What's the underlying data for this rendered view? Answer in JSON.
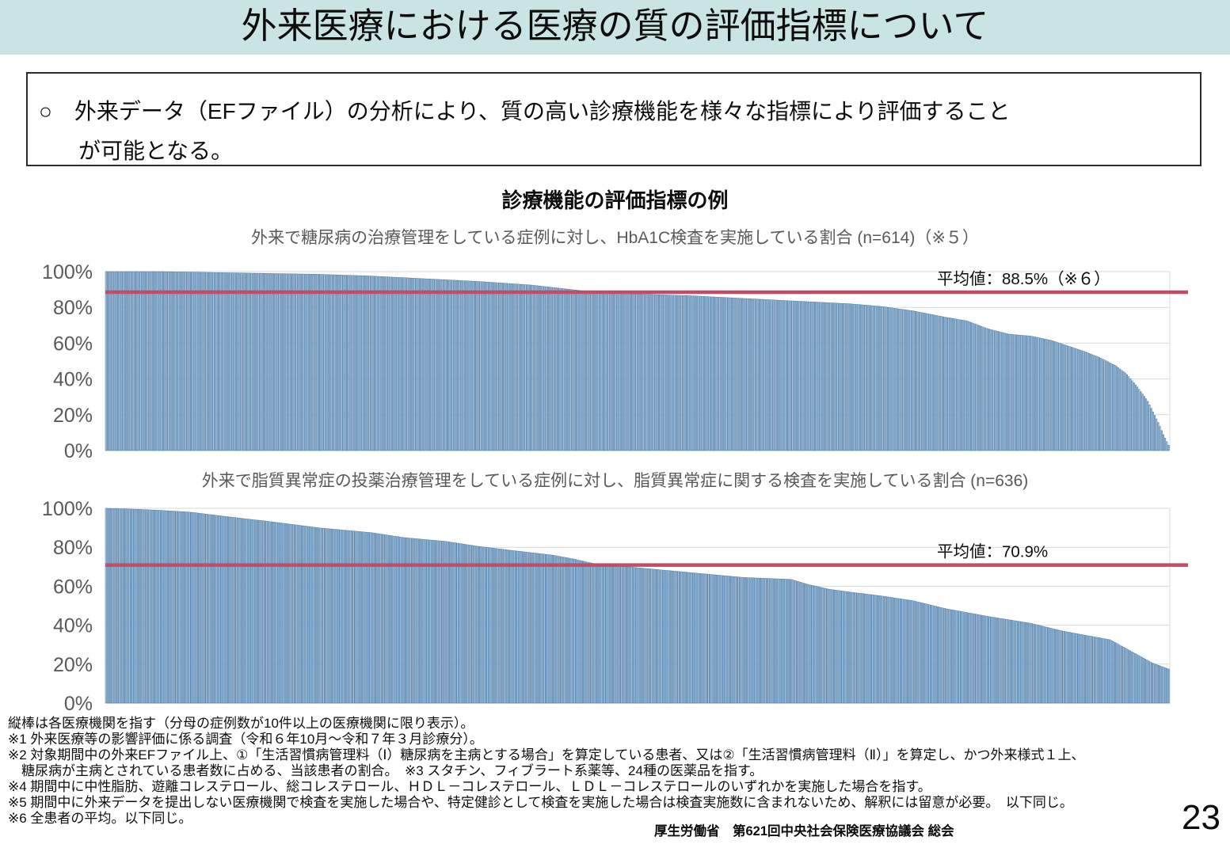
{
  "page": {
    "title": "外来医療における医療の質の評価指標について",
    "page_number": "23",
    "attribution": "厚生労働省　第621回中央社会保険医療協議会 総会"
  },
  "statement": {
    "lines": [
      "○　外来データ（EFファイル）の分析により、質の高い診療機能を様々な指標により評価すること",
      "が可能となる。"
    ]
  },
  "section": {
    "title": "診療機能の評価指標の例"
  },
  "chart_data": [
    {
      "type": "bar",
      "subtitle": "外来で糖尿病の治療管理をしている症例に対し、HbA1C検査を実施している割合 (n=614)（※５）",
      "n": 614,
      "unit": "%",
      "ylim": [
        0,
        100
      ],
      "grid": true,
      "y_ticks": [
        "100%",
        "80%",
        "60%",
        "40%",
        "20%",
        "0%"
      ],
      "mean_value": 88.5,
      "mean_label": "平均値：88.5%（※６）",
      "mean_line_color": "#c34b63",
      "bar_fill_light": "#b5d0ea",
      "bar_fill_dark": "#9fbede",
      "bar_stroke": "#41719c",
      "sort": "descending",
      "profile_points": [
        [
          0,
          100
        ],
        [
          0.05,
          100
        ],
        [
          0.1,
          99.5
        ],
        [
          0.15,
          99
        ],
        [
          0.2,
          98.5
        ],
        [
          0.25,
          97.5
        ],
        [
          0.3,
          96
        ],
        [
          0.35,
          94.5
        ],
        [
          0.4,
          92.5
        ],
        [
          0.43,
          90.5
        ],
        [
          0.46,
          88.5
        ],
        [
          0.5,
          87.5
        ],
        [
          0.55,
          86.5
        ],
        [
          0.6,
          85
        ],
        [
          0.65,
          83.5
        ],
        [
          0.7,
          82
        ],
        [
          0.73,
          80.5
        ],
        [
          0.76,
          78
        ],
        [
          0.79,
          74.5
        ],
        [
          0.81,
          72.5
        ],
        [
          0.83,
          68
        ],
        [
          0.85,
          65
        ],
        [
          0.87,
          64
        ],
        [
          0.89,
          61.5
        ],
        [
          0.905,
          58.5
        ],
        [
          0.92,
          55.5
        ],
        [
          0.935,
          52
        ],
        [
          0.95,
          47.5
        ],
        [
          0.96,
          43
        ],
        [
          0.97,
          36
        ],
        [
          0.98,
          28
        ],
        [
          0.99,
          16
        ],
        [
          0.995,
          9
        ],
        [
          1,
          3
        ]
      ]
    },
    {
      "type": "bar",
      "subtitle": "外来で脂質異常症の投薬治療管理をしている症例に対し、脂質異常症に関する検査を実施している割合 (n=636)",
      "n": 636,
      "unit": "%",
      "ylim": [
        0,
        100
      ],
      "grid": true,
      "y_ticks": [
        "100%",
        "80%",
        "60%",
        "40%",
        "20%",
        "0%"
      ],
      "mean_value": 70.9,
      "mean_label": "平均値：70.9%",
      "mean_line_color": "#c34b63",
      "bar_fill_light": "#b5d0ea",
      "bar_fill_dark": "#9fbede",
      "bar_stroke": "#41719c",
      "sort": "descending",
      "profile_points": [
        [
          0,
          100
        ],
        [
          0.03,
          99.5
        ],
        [
          0.05,
          99
        ],
        [
          0.08,
          98
        ],
        [
          0.125,
          95
        ],
        [
          0.15,
          93.5
        ],
        [
          0.2,
          90
        ],
        [
          0.25,
          87.5
        ],
        [
          0.28,
          85
        ],
        [
          0.32,
          83
        ],
        [
          0.35,
          80.5
        ],
        [
          0.38,
          78.5
        ],
        [
          0.42,
          76
        ],
        [
          0.44,
          74
        ],
        [
          0.46,
          71.5
        ],
        [
          0.5,
          69.5
        ],
        [
          0.55,
          67
        ],
        [
          0.6,
          64.5
        ],
        [
          0.645,
          63.5
        ],
        [
          0.66,
          61
        ],
        [
          0.68,
          58.5
        ],
        [
          0.7,
          57
        ],
        [
          0.73,
          55
        ],
        [
          0.76,
          52.5
        ],
        [
          0.79,
          48.5
        ],
        [
          0.83,
          44.5
        ],
        [
          0.87,
          41
        ],
        [
          0.9,
          37
        ],
        [
          0.93,
          34
        ],
        [
          0.945,
          32.5
        ],
        [
          0.96,
          28
        ],
        [
          0.975,
          23.5
        ],
        [
          0.985,
          20.5
        ],
        [
          1,
          17.5
        ]
      ]
    }
  ],
  "footnotes": {
    "lines": [
      "縦棒は各医療機関を指す（分母の症例数が10件以上の医療機関に限り表示）。",
      "※1 外来医療等の影響評価に係る調査（令和６年10月～令和７年３月診療分）。",
      "※2 対象期間中の外来EFファイル上、①「生活習慣病管理料（Ⅰ）糖尿病を主病とする場合」を算定している患者、又は②「生活習慣病管理料（Ⅱ）」を算定し、かつ外来様式１上、",
      "　糖尿病が主病とされている患者数に占める、当該患者の割合。　※3 スタチン、フィブラート系薬等、24種の医薬品を指す。",
      "※4 期間中に中性脂肪、遊離コレステロール、総コレステロール、ＨＤＬ－コレステロール、ＬＤＬ－コレステロールのいずれかを実施した場合を指す。",
      "※5 期間中に外来データを提出しない医療機関で検査を実施した場合や、特定健診として検査を実施した場合は検査実施数に含まれないため、解釈には留意が必要。　以下同じ。",
      "※6 全患者の平均。以下同じ。"
    ]
  }
}
